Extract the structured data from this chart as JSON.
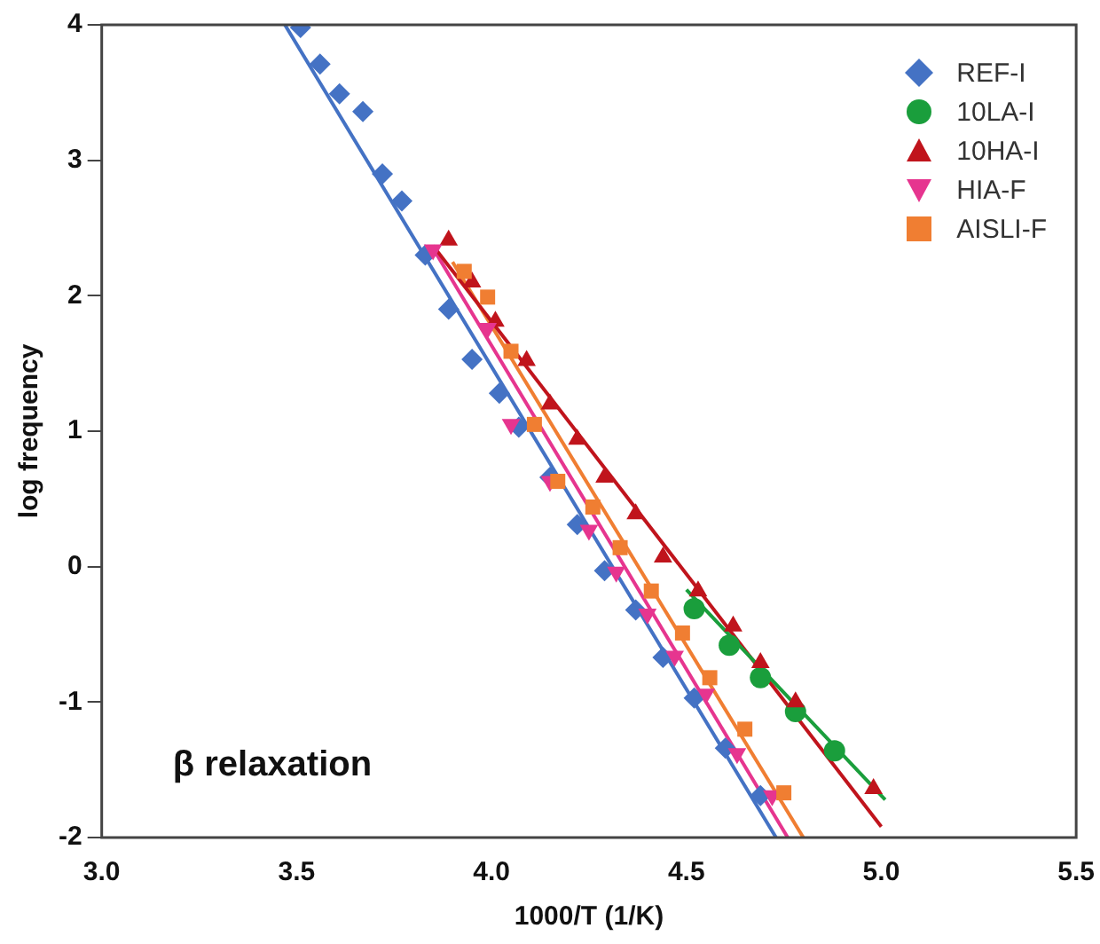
{
  "chart_data": {
    "type": "scatter",
    "xlabel": "1000/T (1/K)",
    "ylabel": "log frequency",
    "xlim": [
      3.0,
      5.5
    ],
    "xticks": [
      {
        "value": 3,
        "label": "3.0"
      },
      3.5,
      {
        "value": 4,
        "label": "4.0"
      },
      4.5,
      {
        "value": 5,
        "label": "5.0"
      },
      5.5
    ],
    "ylim": [
      -2,
      4
    ],
    "yticks": [
      -2,
      -1,
      0,
      1,
      2,
      3,
      4
    ],
    "grid": false,
    "legend": "top right",
    "annotations": [
      "β relaxation"
    ],
    "series": [
      {
        "name": "REF-I",
        "color": "#4472c4",
        "marker": "diamond",
        "x": [
          3.51,
          3.56,
          3.61,
          3.67,
          3.72,
          3.77,
          3.83,
          3.89,
          3.95,
          4.02,
          4.07,
          4.15,
          4.22,
          4.29,
          4.37,
          4.44,
          4.52,
          4.6,
          4.69
        ],
        "values": [
          3.98,
          3.71,
          3.49,
          3.36,
          2.9,
          2.7,
          2.3,
          1.9,
          1.53,
          1.28,
          1.03,
          0.66,
          0.31,
          -0.03,
          -0.32,
          -0.67,
          -0.97,
          -1.34,
          -1.69
        ]
      },
      {
        "name": "10LA-I",
        "color": "#1a9e3c",
        "marker": "circle",
        "x": [
          4.52,
          4.61,
          4.69,
          4.78,
          4.88
        ],
        "values": [
          -0.31,
          -0.58,
          -0.82,
          -1.07,
          -1.36
        ]
      },
      {
        "name": "10HA-I",
        "color": "#c0141c",
        "marker": "triangle",
        "x": [
          3.89,
          3.95,
          4.01,
          4.09,
          4.15,
          4.22,
          4.29,
          4.37,
          4.44,
          4.53,
          4.62,
          4.69,
          4.78,
          4.98
        ],
        "values": [
          2.41,
          2.1,
          1.81,
          1.52,
          1.2,
          0.94,
          0.66,
          0.39,
          0.07,
          -0.18,
          -0.44,
          -0.71,
          -1.0,
          -1.64
        ]
      },
      {
        "name": "HIA-F",
        "color": "#e6358f",
        "marker": "triangle-down",
        "x": [
          3.85,
          3.99,
          4.05,
          4.15,
          4.25,
          4.32,
          4.4,
          4.47,
          4.55,
          4.63,
          4.72
        ],
        "values": [
          2.34,
          1.76,
          1.05,
          0.63,
          0.27,
          -0.04,
          -0.35,
          -0.66,
          -0.94,
          -1.38,
          -1.69
        ]
      },
      {
        "name": "AISLI-F",
        "color": "#f07e32",
        "marker": "square",
        "x": [
          3.93,
          3.99,
          4.05,
          4.11,
          4.17,
          4.26,
          4.33,
          4.41,
          4.49,
          4.56,
          4.65,
          4.75
        ],
        "values": [
          2.18,
          1.99,
          1.59,
          1.05,
          0.63,
          0.44,
          0.14,
          -0.18,
          -0.49,
          -0.82,
          -1.2,
          -1.67
        ]
      },
      {
        "type": "line",
        "color": "#4472c4",
        "marker": "none",
        "x": [
          3.47,
          4.73
        ],
        "values": [
          4.0,
          -2.0
        ]
      },
      {
        "type": "line",
        "color": "#1a9e3c",
        "marker": "none",
        "x": [
          4.5,
          5.01
        ],
        "values": [
          -0.17,
          -1.72
        ]
      },
      {
        "type": "line",
        "color": "#c0141c",
        "marker": "none",
        "x": [
          3.85,
          5.0
        ],
        "values": [
          2.37,
          -1.92
        ]
      },
      {
        "type": "line",
        "color": "#e6358f",
        "marker": "none",
        "x": [
          3.85,
          4.76
        ],
        "values": [
          2.35,
          -2.0
        ]
      },
      {
        "type": "line",
        "color": "#f07e32",
        "marker": "none",
        "x": [
          3.9,
          4.8
        ],
        "values": [
          2.25,
          -2.0
        ]
      }
    ]
  }
}
